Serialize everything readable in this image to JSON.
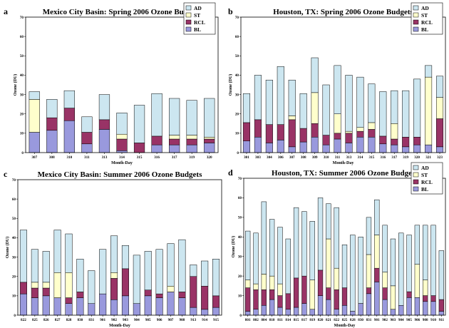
{
  "colors": {
    "BL": "#9999dd",
    "RCL": "#993366",
    "ST": "#ffffcc",
    "AD": "#cce6f0"
  },
  "legend": [
    "AD",
    "ST",
    "RCL",
    "BL"
  ],
  "chart_data": [
    {
      "type": "bar",
      "letter": "a",
      "title": "Mexico City Basin: Spring 2006 Ozone Budgets",
      "xlabel": "Month-Day",
      "ylabel": "Ozone (DU)",
      "ylim": [
        0,
        70
      ],
      "yticks": [
        "0",
        "10",
        "20",
        "30",
        "40",
        "50",
        "60",
        "70"
      ],
      "stacked": true,
      "categories": [
        "307",
        "308",
        "310",
        "311",
        "313",
        "314",
        "315",
        "316",
        "317",
        "319",
        "320"
      ],
      "series": [
        {
          "name": "BL",
          "values": [
            10.5,
            11.5,
            16.5,
            4.5,
            12,
            1,
            0,
            4,
            4,
            4,
            5
          ]
        },
        {
          "name": "RCL",
          "values": [
            0,
            6.5,
            6.5,
            6,
            5,
            6,
            5,
            4.5,
            3,
            3,
            2
          ]
        },
        {
          "name": "ST",
          "values": [
            17,
            0,
            0,
            0,
            0,
            2.5,
            0,
            0,
            2,
            2,
            1
          ]
        },
        {
          "name": "AD",
          "values": [
            4,
            9.5,
            9,
            8,
            13,
            11,
            19.5,
            22,
            19,
            18,
            20
          ]
        }
      ]
    },
    {
      "type": "bar",
      "letter": "b",
      "title": "Houston, TX: Spring 2006 Ozone Budgets",
      "xlabel": "Month-Day",
      "ylabel": "Ozone (DU)",
      "ylim": [
        0,
        70
      ],
      "yticks": [
        "0",
        "10",
        "20",
        "30",
        "40",
        "50",
        "60",
        "70"
      ],
      "stacked": true,
      "categories": [
        "301",
        "303",
        "304",
        "306",
        "307",
        "308",
        "309",
        "310",
        "311",
        "313",
        "314",
        "315",
        "316",
        "317",
        "319",
        "320",
        "321",
        "323"
      ],
      "series": [
        {
          "name": "BL",
          "values": [
            6,
            8,
            5,
            6.5,
            3,
            5.5,
            8,
            4,
            7,
            5,
            8,
            8,
            4.5,
            4,
            3,
            4,
            4,
            3
          ]
        },
        {
          "name": "RCL",
          "values": [
            9.5,
            9,
            9.5,
            8,
            14,
            7,
            7,
            5,
            3,
            5,
            3,
            4,
            4,
            3,
            5,
            4,
            0,
            14.5
          ]
        },
        {
          "name": "ST",
          "values": [
            0,
            0,
            0,
            0,
            2,
            0,
            16,
            0,
            10,
            1,
            2,
            3.5,
            0,
            8,
            0,
            0,
            35,
            11
          ]
        },
        {
          "name": "AD",
          "values": [
            15,
            23,
            23,
            30,
            18.5,
            18,
            18,
            26,
            25,
            29,
            26,
            20,
            23,
            17,
            24,
            30,
            6,
            11
          ]
        }
      ]
    },
    {
      "type": "bar",
      "letter": "c",
      "title": "Mexico City Basin: Summer 2006 Ozone Budgets",
      "xlabel": "Month-Day",
      "ylabel": "Ozone (DU)",
      "ylim": [
        0,
        70
      ],
      "yticks": [
        "0",
        "10",
        "20",
        "30",
        "40",
        "50",
        "60",
        "70"
      ],
      "stacked": true,
      "categories": [
        "822",
        "825",
        "826",
        "827",
        "828",
        "830",
        "831",
        "901",
        "902",
        "903",
        "904",
        "905",
        "906",
        "907",
        "908",
        "913",
        "914",
        "915"
      ],
      "series": [
        {
          "name": "BL",
          "values": [
            11,
            9,
            10,
            9,
            6,
            9,
            6,
            11,
            8,
            10,
            6,
            10,
            9,
            12,
            9,
            4,
            3,
            4
          ]
        },
        {
          "name": "RCL",
          "values": [
            6,
            5,
            4,
            0,
            3,
            3,
            0,
            0,
            11,
            14,
            0,
            3,
            2,
            0,
            3,
            16,
            12,
            6
          ]
        },
        {
          "name": "ST",
          "values": [
            0,
            3,
            3,
            13,
            13,
            0,
            0,
            0,
            3,
            0,
            0,
            0,
            0,
            3,
            0,
            0,
            0,
            0
          ]
        },
        {
          "name": "AD",
          "values": [
            27,
            17,
            16,
            22,
            20,
            17,
            17,
            23,
            19,
            12,
            25,
            20,
            23,
            22,
            27,
            6,
            13,
            19
          ]
        }
      ]
    },
    {
      "type": "bar",
      "letter": "d",
      "title": "Houston, TX: Summer 2006 Ozone Budgets",
      "xlabel": "Month-Day",
      "ylabel": "Ozone (DU)",
      "ylim": [
        0,
        70
      ],
      "yticks": [
        "0",
        "10",
        "20",
        "30",
        "40",
        "50",
        "60",
        "70"
      ],
      "stacked": true,
      "categories": [
        "801",
        "802",
        "804",
        "810",
        "811",
        "814",
        "815",
        "817",
        "819",
        "820",
        "821",
        "822",
        "825",
        "828",
        "830",
        "831",
        "901",
        "902",
        "903",
        "904",
        "905",
        "906",
        "908",
        "910",
        "911"
      ],
      "series": [
        {
          "name": "BL",
          "values": [
            2,
            3,
            5,
            8,
            4,
            3,
            4,
            6,
            3,
            10,
            8,
            3,
            5,
            2,
            6,
            11,
            17,
            8,
            3,
            5,
            9,
            9,
            7,
            7,
            2
          ]
        },
        {
          "name": "RCL",
          "values": [
            12,
            10,
            8,
            5,
            6,
            8,
            15,
            14,
            0,
            13,
            6,
            10,
            9,
            0,
            0,
            3,
            7,
            6,
            0,
            0,
            3,
            0,
            3,
            3,
            6
          ]
        },
        {
          "name": "ST",
          "values": [
            4,
            3,
            8,
            7,
            6,
            0,
            0,
            0,
            15,
            0,
            25,
            11,
            0,
            0,
            0,
            17,
            17,
            8,
            12,
            0,
            0,
            17,
            8,
            0,
            0
          ]
        },
        {
          "name": "AD",
          "values": [
            25,
            26,
            37,
            29,
            29,
            28,
            36,
            33,
            30,
            37,
            18,
            31,
            22,
            39,
            34,
            19,
            18,
            24,
            24,
            37,
            29,
            20,
            28,
            36,
            25
          ]
        }
      ]
    }
  ]
}
